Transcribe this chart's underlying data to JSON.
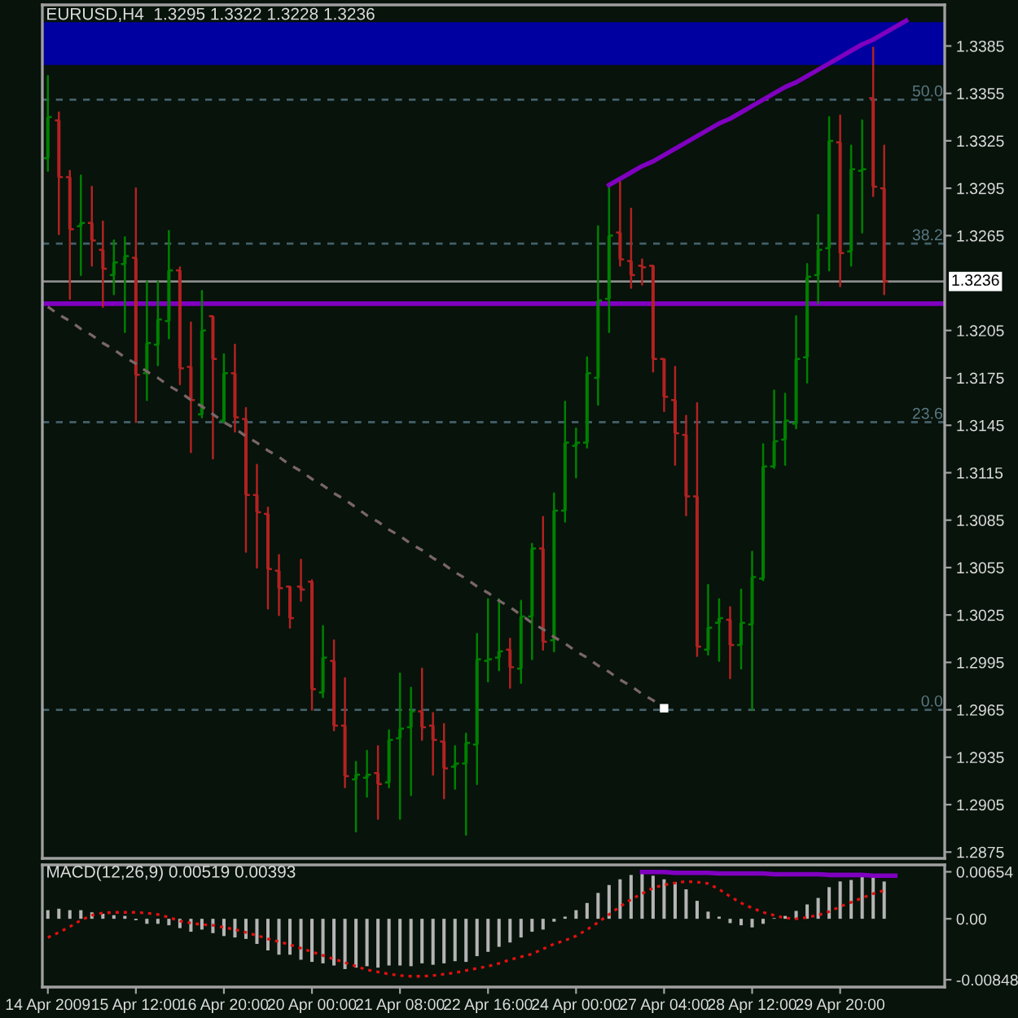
{
  "chart_data": [
    {
      "type": "candlestick",
      "title": "EURUSD,H4  1.3295 1.3322 1.3228 1.3236",
      "categories": [
        null,
        null,
        null,
        null,
        null,
        null,
        null,
        null,
        null,
        null,
        null,
        null,
        null,
        null,
        null,
        null,
        null,
        null,
        null,
        null,
        null,
        null,
        null,
        null,
        null,
        null,
        null,
        null,
        null,
        null,
        null,
        null,
        null,
        null,
        null,
        null,
        null,
        null,
        null,
        null,
        null,
        null,
        null,
        null,
        null,
        null,
        null,
        null,
        null,
        null,
        null,
        null,
        null,
        null,
        null,
        null,
        null,
        null,
        null,
        null,
        null,
        null,
        null,
        null,
        null,
        null,
        null,
        null,
        null,
        null,
        null,
        null,
        null,
        null,
        null,
        null,
        null,
        null,
        null,
        null,
        null,
        null
      ],
      "ohlc": [
        [
          1.3314,
          1.3366,
          1.3306,
          1.334
        ],
        [
          1.3338,
          1.3343,
          1.3266,
          1.3302
        ],
        [
          1.3302,
          1.3306,
          1.3225,
          1.3269
        ],
        [
          1.3271,
          1.3303,
          1.324,
          1.3273
        ],
        [
          1.3273,
          1.3296,
          1.3246,
          1.3262
        ],
        [
          1.3256,
          1.3274,
          1.322,
          1.3244
        ],
        [
          1.324,
          1.3262,
          1.3228,
          1.3248
        ],
        [
          1.3247,
          1.3264,
          1.3204,
          1.3252
        ],
        [
          1.3251,
          1.3295,
          1.3147,
          1.3177
        ],
        [
          1.3178,
          1.3236,
          1.3161,
          1.3197
        ],
        [
          1.3196,
          1.3236,
          1.3183,
          1.3212
        ],
        [
          1.3211,
          1.3268,
          1.32,
          1.3243
        ],
        [
          1.3243,
          1.3245,
          1.3171,
          1.3181
        ],
        [
          1.3182,
          1.321,
          1.3128,
          1.3161
        ],
        [
          1.3152,
          1.323,
          1.315,
          1.3205
        ],
        [
          1.3214,
          1.3214,
          1.3124,
          1.3187
        ],
        [
          1.3148,
          1.319,
          1.3147,
          1.3178
        ],
        [
          1.3178,
          1.3196,
          1.3141,
          1.315
        ],
        [
          1.3149,
          1.3156,
          1.3065,
          1.3101
        ],
        [
          1.3101,
          1.312,
          1.3055,
          1.309
        ],
        [
          1.3089,
          1.3093,
          1.3029,
          1.3054
        ],
        [
          1.3053,
          1.3063,
          1.3025,
          1.3042
        ],
        [
          1.3043,
          1.3043,
          1.3017,
          1.3023
        ],
        [
          1.3043,
          1.306,
          1.3034,
          1.3041
        ],
        [
          1.3046,
          1.3047,
          1.2965,
          1.2978
        ],
        [
          1.2976,
          1.3018,
          1.2973,
          1.2998
        ],
        [
          1.2996,
          1.3009,
          1.2952,
          1.2955
        ],
        [
          1.2955,
          1.2985,
          1.2916,
          1.2923
        ],
        [
          1.2921,
          1.2932,
          1.2888,
          1.2924
        ],
        [
          1.2922,
          1.2939,
          1.291,
          1.2924
        ],
        [
          1.2925,
          1.2942,
          1.2896,
          1.2918
        ],
        [
          1.2919,
          1.2952,
          1.2916,
          1.2946
        ],
        [
          1.2947,
          1.2988,
          1.2896,
          1.2953
        ],
        [
          1.2954,
          1.2979,
          1.2911,
          1.2964
        ],
        [
          1.2964,
          1.2991,
          1.2946,
          1.2954
        ],
        [
          1.2955,
          1.2963,
          1.2924,
          1.2946
        ],
        [
          1.2945,
          1.2956,
          1.2909,
          1.2928
        ],
        [
          1.2929,
          1.2942,
          1.2915,
          1.2931
        ],
        [
          1.2931,
          1.295,
          1.2886,
          1.2944
        ],
        [
          1.2943,
          1.3013,
          1.2918,
          1.2997
        ],
        [
          1.2996,
          1.3035,
          1.2983,
          1.2997
        ],
        [
          1.2998,
          1.3035,
          1.299,
          1.3002
        ],
        [
          1.3003,
          1.301,
          1.2979,
          1.2992
        ],
        [
          1.2991,
          1.3034,
          1.2982,
          1.3024
        ],
        [
          1.3024,
          1.307,
          1.2997,
          1.3067
        ],
        [
          1.3067,
          1.3087,
          1.3003,
          1.3008
        ],
        [
          1.3009,
          1.3102,
          1.3002,
          1.3091
        ],
        [
          1.3091,
          1.316,
          1.3084,
          1.3134
        ],
        [
          1.3132,
          1.3143,
          1.3112,
          1.3134
        ],
        [
          1.3134,
          1.3188,
          1.3131,
          1.3178
        ],
        [
          1.3175,
          1.3271,
          1.3158,
          1.3224
        ],
        [
          1.3225,
          1.3297,
          1.3204,
          1.3265
        ],
        [
          1.3267,
          1.33,
          1.3246,
          1.325
        ],
        [
          1.3249,
          1.3282,
          1.3232,
          1.324
        ],
        [
          1.3246,
          1.325,
          1.3234,
          1.3245
        ],
        [
          1.3246,
          1.3246,
          1.3179,
          1.3187
        ],
        [
          1.3187,
          1.3187,
          1.3154,
          1.3163
        ],
        [
          1.3161,
          1.3182,
          1.312,
          1.314
        ],
        [
          1.3139,
          1.3151,
          1.3088,
          1.31
        ],
        [
          1.31,
          1.3159,
          1.2999,
          1.3005
        ],
        [
          1.3003,
          1.3044,
          1.3,
          1.3017
        ],
        [
          1.302,
          1.3035,
          1.2996,
          1.3023
        ],
        [
          1.3022,
          1.303,
          1.2985,
          1.3006
        ],
        [
          1.3006,
          1.3041,
          1.2991,
          1.302
        ],
        [
          1.3019,
          1.3065,
          1.2965,
          1.3049
        ],
        [
          1.3048,
          1.3133,
          1.3047,
          1.3119
        ],
        [
          1.3119,
          1.3167,
          1.3118,
          1.3135
        ],
        [
          1.3136,
          1.3165,
          1.312,
          1.3148
        ],
        [
          1.3146,
          1.3214,
          1.3143,
          1.3187
        ],
        [
          1.3188,
          1.3247,
          1.3172,
          1.3239
        ],
        [
          1.324,
          1.3278,
          1.3222,
          1.3256
        ],
        [
          1.3257,
          1.334,
          1.3243,
          1.3325
        ],
        [
          1.3324,
          1.3341,
          1.3233,
          1.3254
        ],
        [
          1.3255,
          1.3322,
          1.3246,
          1.3307
        ],
        [
          1.3306,
          1.3338,
          1.3267,
          1.3307
        ],
        [
          1.3352,
          1.3384,
          1.329,
          1.3296
        ],
        [
          1.3295,
          1.3322,
          1.3228,
          1.3236
        ],
        null,
        null,
        null,
        null,
        null
      ],
      "colors": [
        "#008000",
        "#b22222",
        "#b22222",
        "#008000",
        "#b22222",
        "#b22222",
        "#008000",
        "#008000",
        "#b22222",
        "#008000",
        "#008000",
        "#008000",
        "#b22222",
        "#b22222",
        "#008000",
        "#b22222",
        "#008000",
        "#b22222",
        "#b22222",
        "#b22222",
        "#b22222",
        "#b22222",
        "#b22222",
        "#b22222",
        "#b22222",
        "#008000",
        "#b22222",
        "#b22222",
        "#008000",
        "#008000",
        "#b22222",
        "#008000",
        "#008000",
        "#008000",
        "#b22222",
        "#b22222",
        "#b22222",
        "#008000",
        "#008000",
        "#008000",
        "#008000",
        "#008000",
        "#b22222",
        "#008000",
        "#008000",
        "#b22222",
        "#008000",
        "#008000",
        "#008000",
        "#008000",
        "#008000",
        "#008000",
        "#b22222",
        "#b22222",
        "#b22222",
        "#b22222",
        "#b22222",
        "#b22222",
        "#b22222",
        "#b22222",
        "#008000",
        "#008000",
        "#b22222",
        "#008000",
        "#008000",
        "#008000",
        "#008000",
        "#008000",
        "#008000",
        "#008000",
        "#008000",
        "#008000",
        "#b22222",
        "#008000",
        "#008000",
        "#b22222",
        "#b22222",
        null,
        null,
        null,
        null,
        null
      ],
      "series": [
        {
          "type": "line",
          "color": "#8000c0",
          "line_style": "solid",
          "values": [
            null,
            null,
            null,
            null,
            null,
            null,
            null,
            null,
            null,
            null,
            null,
            null,
            null,
            null,
            null,
            null,
            null,
            null,
            null,
            null,
            null,
            null,
            null,
            null,
            null,
            null,
            null,
            null,
            null,
            null,
            null,
            null,
            null,
            null,
            null,
            null,
            null,
            null,
            null,
            null,
            null,
            null,
            null,
            null,
            null,
            null,
            null,
            null,
            null,
            null,
            null,
            1.3297,
            1.3301,
            1.3305,
            1.3309,
            1.3312,
            1.3316,
            1.332,
            1.3324,
            1.3328,
            1.3332,
            1.3336,
            1.3339,
            1.3343,
            1.3347,
            1.3351,
            1.3355,
            1.3359,
            1.3362,
            1.3366,
            1.337,
            1.3374,
            1.3378,
            1.3382,
            1.3386,
            1.3389,
            1.3393,
            1.3397,
            1.3401,
            null,
            null,
            null
          ]
        },
        {
          "type": "line",
          "color": "#7a6666",
          "line_style": "dashed",
          "values": [
            1.322,
            1.3215,
            1.3211,
            1.3206,
            1.3202,
            1.3197,
            1.3193,
            1.3188,
            1.3184,
            1.3179,
            1.3175,
            1.317,
            1.3166,
            1.3161,
            1.3157,
            1.3152,
            1.3147,
            1.3143,
            1.3138,
            1.3134,
            1.3129,
            1.3125,
            1.312,
            1.3116,
            1.3111,
            1.3107,
            1.3102,
            1.3098,
            1.3093,
            1.3088,
            1.3084,
            1.3079,
            1.3075,
            1.307,
            1.3066,
            1.3061,
            1.3057,
            1.3052,
            1.3048,
            1.3043,
            1.3039,
            1.3034,
            1.303,
            1.3025,
            1.302,
            1.3016,
            1.3011,
            1.3007,
            1.3002,
            1.2998,
            1.2993,
            1.2989,
            1.2984,
            1.298,
            1.2975,
            1.2971,
            1.2966,
            null,
            null,
            null,
            null,
            null,
            null,
            null,
            null,
            null,
            null,
            null,
            null,
            null,
            null,
            null,
            null,
            null,
            null,
            null,
            null,
            null,
            null,
            null,
            null,
            null
          ]
        },
        {
          "type": "scatter",
          "color": "#ffffff",
          "marker": "square",
          "values": [
            null,
            null,
            null,
            null,
            null,
            null,
            null,
            null,
            null,
            null,
            null,
            null,
            null,
            null,
            null,
            null,
            null,
            null,
            null,
            null,
            null,
            null,
            null,
            null,
            null,
            null,
            null,
            null,
            null,
            null,
            null,
            null,
            null,
            null,
            null,
            null,
            null,
            null,
            null,
            null,
            null,
            null,
            null,
            null,
            null,
            null,
            null,
            null,
            null,
            null,
            null,
            null,
            null,
            null,
            null,
            null,
            1.2966,
            null,
            null,
            null,
            null,
            null,
            null,
            null,
            null,
            null,
            null,
            null,
            null,
            null,
            null,
            null,
            null,
            null,
            null,
            null,
            null,
            null,
            null,
            null,
            null,
            null
          ]
        }
      ],
      "ref_lines": [
        {
          "axis": "y",
          "value": 1.3351,
          "color": "#45606a",
          "line_style": "dashed"
        },
        {
          "axis": "y",
          "value": 1.326,
          "color": "#45606a",
          "line_style": "dashed"
        },
        {
          "axis": "y",
          "value": 1.3147,
          "color": "#45606a",
          "line_style": "dashed"
        },
        {
          "axis": "y",
          "value": 1.2965,
          "color": "#45606a",
          "line_style": "dashed"
        },
        {
          "axis": "y",
          "value": 1.3236,
          "label": "1.3236",
          "color": "#8c8c8c",
          "line_style": "solid"
        },
        {
          "axis": "y",
          "value": 1.3222,
          "color": "#8000c0",
          "line_style": "solid"
        }
      ],
      "annotations": [
        {
          "text": "50.0",
          "y": 1.3351
        },
        {
          "text": "38.2",
          "y": 1.326
        },
        {
          "text": "23.6",
          "y": 1.3147
        },
        {
          "text": "0.0",
          "y": 1.2965
        }
      ],
      "bands": [
        {
          "axis": "y",
          "from": 1.3373,
          "to": 1.34,
          "color": "#0000a0"
        }
      ],
      "ylim": [
        1.2871,
        1.3411
      ],
      "yticks": [
        1.3385,
        1.3355,
        1.3325,
        1.3295,
        1.3265,
        1.3205,
        1.3175,
        1.3145,
        1.3115,
        1.3085,
        1.3055,
        1.3025,
        1.2995,
        1.2965,
        1.2935,
        1.2905,
        1.2875
      ],
      "tick_labels": "y"
    },
    {
      "type": "bar",
      "title": "MACD(12,26,9) 0.00519 0.00393",
      "categories": [
        "14 Apr 2009",
        null,
        null,
        null,
        null,
        null,
        null,
        null,
        "15 Apr 12:00",
        null,
        null,
        null,
        null,
        null,
        null,
        null,
        "16 Apr 20:00",
        null,
        null,
        null,
        null,
        null,
        null,
        null,
        "20 Apr 00:00",
        null,
        null,
        null,
        null,
        null,
        null,
        null,
        "21 Apr 08:00",
        null,
        null,
        null,
        null,
        null,
        null,
        null,
        "22 Apr 16:00",
        null,
        null,
        null,
        null,
        null,
        null,
        null,
        "24 Apr 00:00",
        null,
        null,
        null,
        null,
        null,
        null,
        null,
        "27 Apr 04:00",
        null,
        null,
        null,
        null,
        null,
        null,
        null,
        "28 Apr 12:00",
        null,
        null,
        null,
        null,
        null,
        null,
        null,
        "29 Apr 20:00",
        null,
        null,
        null,
        null,
        null,
        null,
        null,
        null,
        null
      ],
      "series": [
        {
          "color": "#b4b4b4",
          "values": [
            0.0012,
            0.0014,
            0.0012,
            0.0012,
            0.0009,
            0.0007,
            0.0005,
            0.0004,
            -0.0002,
            -0.0007,
            -0.0007,
            -0.0009,
            -0.0013,
            -0.0018,
            -0.0015,
            -0.002,
            -0.0024,
            -0.0026,
            -0.0028,
            -0.0035,
            -0.0044,
            -0.005,
            -0.005,
            -0.0057,
            -0.006,
            -0.0062,
            -0.0065,
            -0.007,
            -0.0068,
            -0.0066,
            -0.0068,
            -0.0065,
            -0.0065,
            -0.0066,
            -0.0062,
            -0.0064,
            -0.0062,
            -0.0059,
            -0.006,
            -0.0052,
            -0.0046,
            -0.0039,
            -0.0033,
            -0.0026,
            -0.0018,
            -0.0015,
            -0.0004,
            0.0003,
            0.0012,
            0.0022,
            0.0036,
            0.0047,
            0.0055,
            0.0061,
            0.0065,
            0.006,
            0.0055,
            0.0051,
            0.0041,
            0.0025,
            0.001,
            0.0003,
            -0.0006,
            -0.0009,
            -0.0012,
            -0.0007,
            0.0001,
            0.0004,
            0.0011,
            0.002,
            0.0029,
            0.0044,
            0.0052,
            0.0054,
            0.006,
            0.006,
            0.00519,
            null,
            null,
            null,
            null,
            null
          ]
        },
        {
          "type": "line",
          "color": "#e01010",
          "line_style": "dotted",
          "values": [
            -0.0026,
            -0.0019,
            -0.0011,
            -0.0002,
            0.0005,
            0.0008,
            0.0009,
            0.0009,
            0.0009,
            0.0008,
            0.0006,
            0.0002,
            -0.0003,
            -0.0006,
            -0.0008,
            -0.0009,
            -0.0012,
            -0.0015,
            -0.0019,
            -0.0023,
            -0.0028,
            -0.0032,
            -0.0036,
            -0.0041,
            -0.0046,
            -0.0051,
            -0.0056,
            -0.0061,
            -0.0066,
            -0.0071,
            -0.0074,
            -0.0077,
            -0.0079,
            -0.008,
            -0.008,
            -0.0079,
            -0.0077,
            -0.0075,
            -0.0072,
            -0.0069,
            -0.0066,
            -0.0062,
            -0.0057,
            -0.0053,
            -0.0049,
            -0.0042,
            -0.0035,
            -0.003,
            -0.0024,
            -0.0015,
            -0.0005,
            0.0006,
            0.0017,
            0.0027,
            0.0035,
            0.0043,
            0.0047,
            0.005,
            0.0052,
            0.0051,
            0.0049,
            0.0041,
            0.0031,
            0.0022,
            0.0015,
            0.0009,
            0.0005,
            0.0001,
            0.0,
            0.0002,
            0.0005,
            0.001,
            0.0017,
            0.0023,
            0.0029,
            0.0035,
            0.00393,
            null,
            null,
            null,
            null,
            null
          ]
        },
        {
          "type": "line",
          "color": "#8000c0",
          "line_style": "solid",
          "values": [
            null,
            null,
            null,
            null,
            null,
            null,
            null,
            null,
            null,
            null,
            null,
            null,
            null,
            null,
            null,
            null,
            null,
            null,
            null,
            null,
            null,
            null,
            null,
            null,
            null,
            null,
            null,
            null,
            null,
            null,
            null,
            null,
            null,
            null,
            null,
            null,
            null,
            null,
            null,
            null,
            null,
            null,
            null,
            null,
            null,
            null,
            null,
            null,
            null,
            null,
            null,
            null,
            null,
            null,
            0.0065,
            0.0065,
            0.0065,
            0.0064,
            0.0064,
            0.0064,
            0.0064,
            0.0063,
            0.0063,
            0.0063,
            0.0063,
            0.0063,
            0.0062,
            0.0062,
            0.0062,
            0.0062,
            0.0062,
            0.0061,
            0.0061,
            0.0061,
            0.0061,
            0.006,
            0.006,
            0.006,
            null,
            null,
            null,
            null
          ]
        }
      ],
      "ylim": [
        -0.0095,
        0.0075
      ],
      "yticks": [
        0.00654,
        {
          "value": 0,
          "label": "0.00"
        },
        -0.00848
      ]
    }
  ]
}
